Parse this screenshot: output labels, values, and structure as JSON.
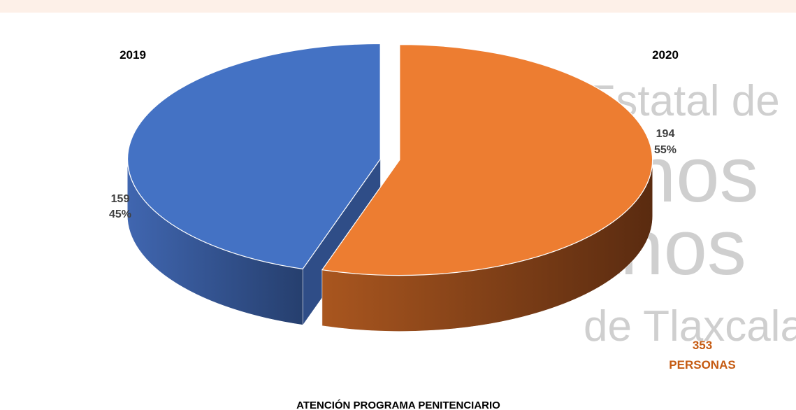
{
  "chart_data": {
    "type": "pie3d",
    "title": "ATENCIÓN PROGRAMA PENITENCIARIO",
    "categories": [
      "2019",
      "2020"
    ],
    "values": [
      159,
      194
    ],
    "percent_labels": [
      "45%",
      "55%"
    ],
    "colors": [
      "#4472c4",
      "#ed7d31"
    ],
    "total": 353,
    "total_unit": "PERSONAS",
    "watermark": [
      "Estatal de",
      "nos",
      "anos",
      "de Tlaxcala"
    ]
  }
}
